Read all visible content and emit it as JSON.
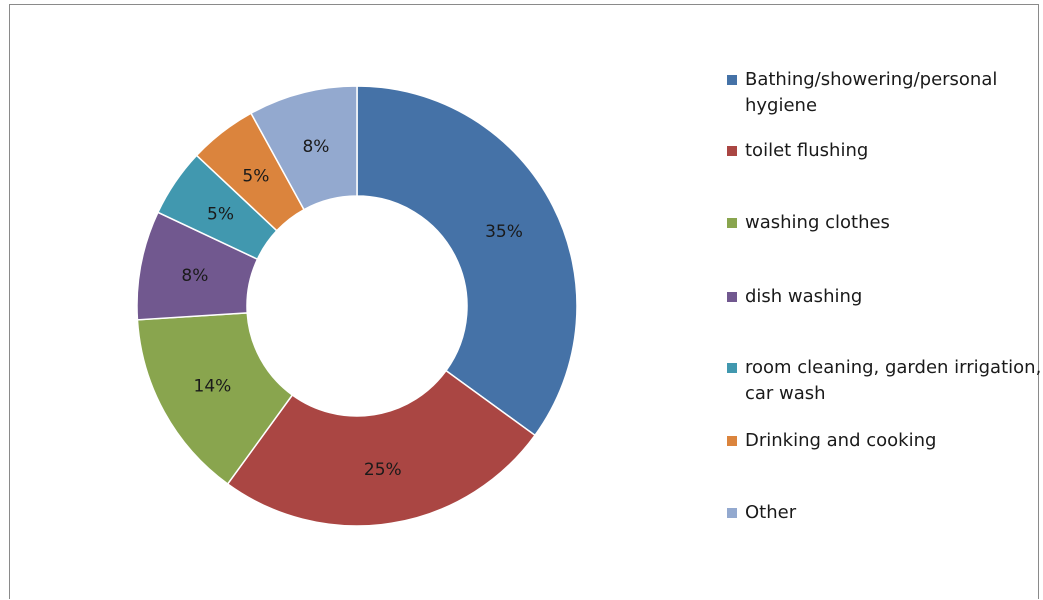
{
  "chart_data": {
    "type": "pie",
    "donut": true,
    "slices": [
      {
        "label": "Bathing/showering/personal hygiene",
        "value": 35,
        "display": "35%",
        "color": "#4572A7"
      },
      {
        "label": "toilet flushing",
        "value": 25,
        "display": "25%",
        "color": "#AA4643"
      },
      {
        "label": "washing clothes",
        "value": 14,
        "display": "14%",
        "color": "#89A54E"
      },
      {
        "label": "dish washing",
        "value": 8,
        "display": "8%",
        "color": "#71588F"
      },
      {
        "label": "room cleaning, garden irrigation, car wash",
        "value": 5,
        "display": "5%",
        "color": "#4198AF"
      },
      {
        "label": "Drinking and cooking",
        "value": 5,
        "display": "5%",
        "color": "#DB843D"
      },
      {
        "label": "Other",
        "value": 8,
        "display": "8%",
        "color": "#93A9CF"
      }
    ],
    "legend_position": "right"
  },
  "legend": {
    "items": [
      {
        "label": "Bathing/showering/personal hygiene",
        "color": "#4572A7"
      },
      {
        "label": "toilet flushing",
        "color": "#AA4643"
      },
      {
        "label": "washing clothes",
        "color": "#89A54E"
      },
      {
        "label": "dish washing",
        "color": "#71588F"
      },
      {
        "label": "room cleaning, garden irrigation, car wash",
        "color": "#4198AF"
      },
      {
        "label": "Drinking and cooking",
        "color": "#DB843D"
      },
      {
        "label": "Other",
        "color": "#93A9CF"
      }
    ]
  }
}
